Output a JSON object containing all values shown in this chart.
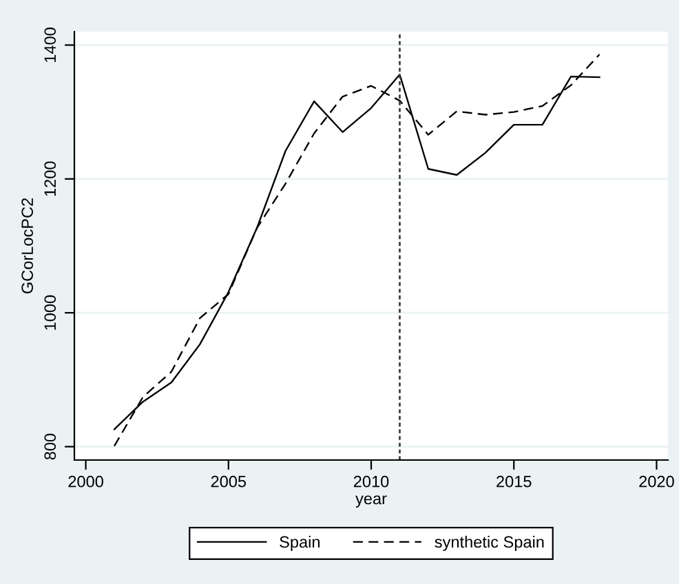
{
  "chart_data": {
    "type": "line",
    "xlabel": "year",
    "ylabel": "GCorLocPC2",
    "x": [
      2001,
      2002,
      2003,
      2004,
      2005,
      2006,
      2007,
      2008,
      2009,
      2010,
      2011,
      2012,
      2013,
      2014,
      2015,
      2016,
      2017,
      2018
    ],
    "series": [
      {
        "name": "Spain",
        "color": "#000000",
        "line_style": "solid",
        "values": [
          826,
          867,
          896,
          953,
          1031,
          1127,
          1242,
          1316,
          1270,
          1306,
          1356,
          1215,
          1206,
          1239,
          1281,
          1281,
          1353,
          1352
        ]
      },
      {
        "name": "synthetic Spain",
        "color": "#000000",
        "line_style": "dashed",
        "values": [
          801,
          874,
          912,
          992,
          1028,
          1127,
          1193,
          1268,
          1323,
          1339,
          1317,
          1266,
          1301,
          1296,
          1300,
          1309,
          1340,
          1386
        ]
      }
    ],
    "xlim": [
      1999.6,
      2020.4
    ],
    "ylim": [
      780,
      1420
    ],
    "xticks": [
      2000,
      2005,
      2010,
      2015,
      2020
    ],
    "yticks": [
      800,
      1000,
      1200,
      1400
    ],
    "ref_lines": [
      {
        "axis": "x",
        "value": 2011,
        "color": "#404040",
        "line_style": "dotted"
      }
    ],
    "grid": "y",
    "legend": "bottom",
    "marker": "none"
  }
}
